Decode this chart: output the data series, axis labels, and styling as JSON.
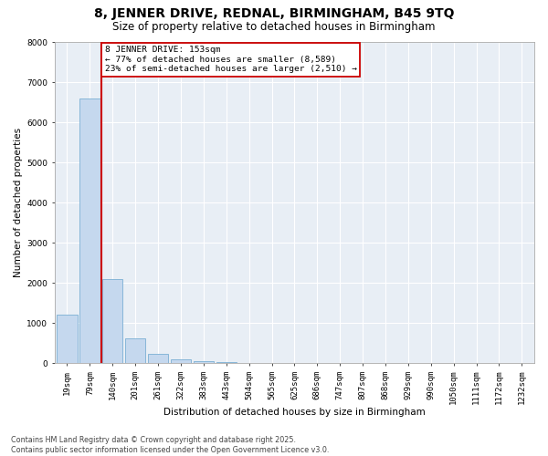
{
  "title_line1": "8, JENNER DRIVE, REDNAL, BIRMINGHAM, B45 9TQ",
  "title_line2": "Size of property relative to detached houses in Birmingham",
  "xlabel": "Distribution of detached houses by size in Birmingham",
  "ylabel": "Number of detached properties",
  "categories": [
    "19sqm",
    "79sqm",
    "140sqm",
    "201sqm",
    "261sqm",
    "322sqm",
    "383sqm",
    "443sqm",
    "504sqm",
    "565sqm",
    "625sqm",
    "686sqm",
    "747sqm",
    "807sqm",
    "868sqm",
    "929sqm",
    "990sqm",
    "1050sqm",
    "1111sqm",
    "1172sqm",
    "1232sqm"
  ],
  "values": [
    1200,
    6600,
    2100,
    620,
    220,
    85,
    50,
    30,
    8,
    4,
    2,
    1,
    0,
    0,
    0,
    0,
    0,
    0,
    0,
    0,
    0
  ],
  "bar_color": "#c5d8ee",
  "bar_edgecolor": "#7aafd4",
  "vline_color": "#cc0000",
  "annotation_line1": "8 JENNER DRIVE: 153sqm",
  "annotation_line2": "← 77% of detached houses are smaller (8,589)",
  "annotation_line3": "23% of semi-detached houses are larger (2,510) →",
  "annotation_box_edgecolor": "#cc0000",
  "ylim": [
    0,
    8000
  ],
  "yticks": [
    0,
    1000,
    2000,
    3000,
    4000,
    5000,
    6000,
    7000,
    8000
  ],
  "footnote_line1": "Contains HM Land Registry data © Crown copyright and database right 2025.",
  "footnote_line2": "Contains public sector information licensed under the Open Government Licence v3.0.",
  "bg_color": "#ffffff",
  "plot_bg_color": "#e8eef5",
  "grid_color": "#ffffff",
  "title_fontsize": 10,
  "subtitle_fontsize": 8.5,
  "axis_label_fontsize": 7.5,
  "tick_fontsize": 6.5,
  "annotation_fontsize": 6.8,
  "footnote_fontsize": 5.8
}
